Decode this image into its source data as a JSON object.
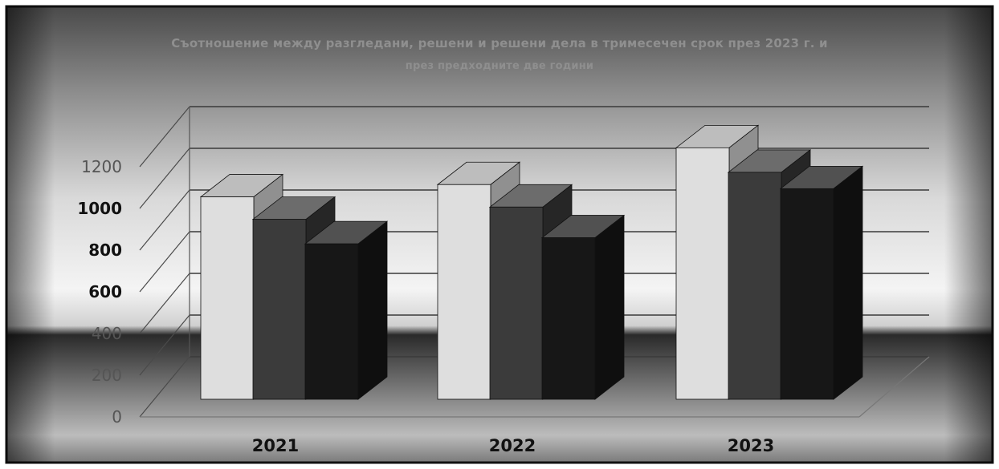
{
  "chart_data": {
    "type": "bar",
    "title_lines": [
      "Съотношение между  разгледани, решени и решени дела в тримесечен срок през 2023 г. и",
      "през предходните две години"
    ],
    "categories": [
      "2021",
      "2022",
      "2023"
    ],
    "series": [
      {
        "values": [
          990,
          1050,
          1230
        ],
        "color": "#dedede"
      },
      {
        "values": [
          880,
          940,
          1110
        ],
        "color": "#3b3b3b"
      },
      {
        "values": [
          760,
          790,
          1030
        ],
        "color": "#171717"
      }
    ],
    "yticks": [
      "0",
      "200",
      "400",
      "600",
      "800",
      "1000",
      "1200"
    ],
    "ylim": [
      0,
      1200
    ],
    "grid": true,
    "legend": "none"
  }
}
